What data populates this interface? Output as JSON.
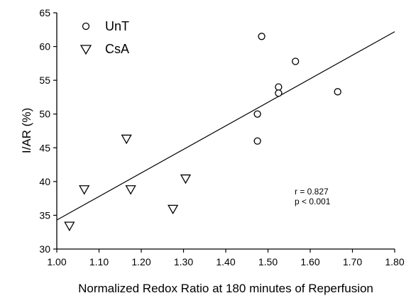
{
  "chart_data": {
    "type": "scatter",
    "xlabel": "Normalized Redox Ratio at 180 minutes of Reperfusion",
    "ylabel": "I/AR (%)",
    "xlim": [
      1.0,
      1.8
    ],
    "ylim": [
      30,
      65
    ],
    "x_ticks": [
      "1.00",
      "1.10",
      "1.20",
      "1.30",
      "1.40",
      "1.50",
      "1.60",
      "1.70",
      "1.80"
    ],
    "y_ticks": [
      "30",
      "35",
      "40",
      "45",
      "50",
      "55",
      "60",
      "65"
    ],
    "grid": false,
    "legend_position": "top-left",
    "series": [
      {
        "name": "UnT",
        "marker": "circle",
        "points": [
          {
            "x": 1.485,
            "y": 61.5
          },
          {
            "x": 1.565,
            "y": 57.8
          },
          {
            "x": 1.525,
            "y": 54.0
          },
          {
            "x": 1.525,
            "y": 53.1
          },
          {
            "x": 1.665,
            "y": 53.3
          },
          {
            "x": 1.475,
            "y": 50.0
          },
          {
            "x": 1.475,
            "y": 46.0
          }
        ]
      },
      {
        "name": "CsA",
        "marker": "triangle-down",
        "points": [
          {
            "x": 1.165,
            "y": 46.3
          },
          {
            "x": 1.305,
            "y": 40.4
          },
          {
            "x": 1.065,
            "y": 38.8
          },
          {
            "x": 1.175,
            "y": 38.8
          },
          {
            "x": 1.275,
            "y": 35.9
          },
          {
            "x": 1.03,
            "y": 33.4
          }
        ]
      }
    ],
    "regression_line": {
      "x": [
        1.0,
        1.8
      ],
      "y": [
        34.3,
        62.2
      ]
    },
    "annotations": [
      "r = 0.827",
      "p < 0.001"
    ]
  }
}
